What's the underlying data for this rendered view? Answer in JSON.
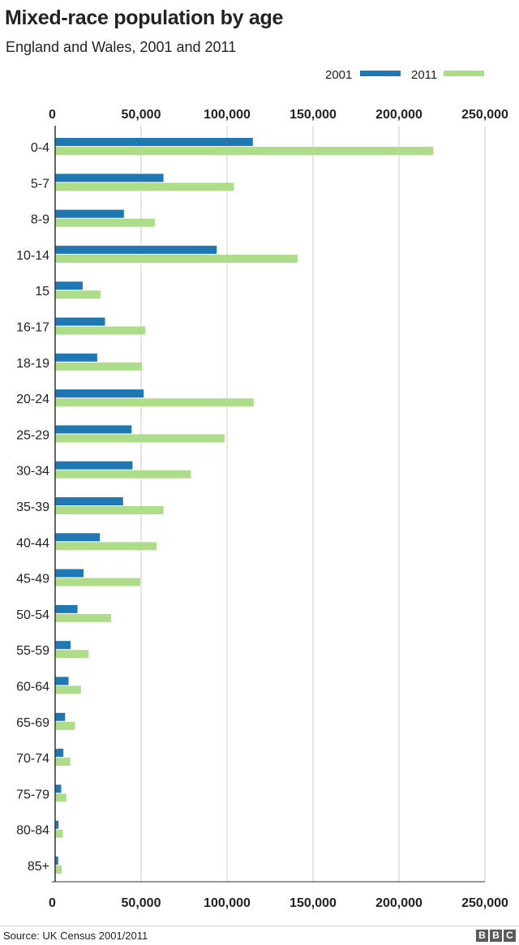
{
  "header": {
    "title": "Mixed-race population by age",
    "subtitle": "England and Wales, 2001 and 2011"
  },
  "footer": {
    "source": "Source: UK Census 2001/2011",
    "logo": [
      "B",
      "B",
      "C"
    ]
  },
  "colors": {
    "s2001": "#1f77b4",
    "s2011": "#aedd8a",
    "grid": "#cccccc",
    "axis": "#333333"
  },
  "chart_data": {
    "type": "bar",
    "orientation": "horizontal",
    "title": "Mixed-race population by age",
    "subtitle": "England and Wales, 2001 and 2011",
    "categories": [
      "0-4",
      "5-7",
      "8-9",
      "10-14",
      "15",
      "16-17",
      "18-19",
      "20-24",
      "25-29",
      "30-34",
      "35-39",
      "40-44",
      "45-49",
      "50-54",
      "55-59",
      "60-64",
      "65-69",
      "70-74",
      "75-79",
      "80-84",
      "85+"
    ],
    "series": [
      {
        "name": "2001",
        "values": [
          115000,
          63000,
          40000,
          94000,
          16000,
          29000,
          24500,
          51500,
          44500,
          45000,
          39500,
          26000,
          16500,
          13000,
          9000,
          7800,
          5800,
          4800,
          3500,
          2000,
          1800
        ]
      },
      {
        "name": "2011",
        "values": [
          220000,
          104000,
          58000,
          141000,
          26500,
          52500,
          50500,
          115500,
          98500,
          79000,
          63000,
          59000,
          49500,
          32500,
          19500,
          15000,
          11500,
          8800,
          6500,
          4500,
          3800
        ]
      }
    ],
    "xlim": [
      0,
      250000
    ],
    "ticks": [
      "0",
      "50,000",
      "100,000",
      "150,000",
      "200,000",
      "250,000"
    ],
    "tick_values": [
      0,
      50000,
      100000,
      150000,
      200000,
      250000
    ],
    "grid": true,
    "legend": "top-right"
  }
}
